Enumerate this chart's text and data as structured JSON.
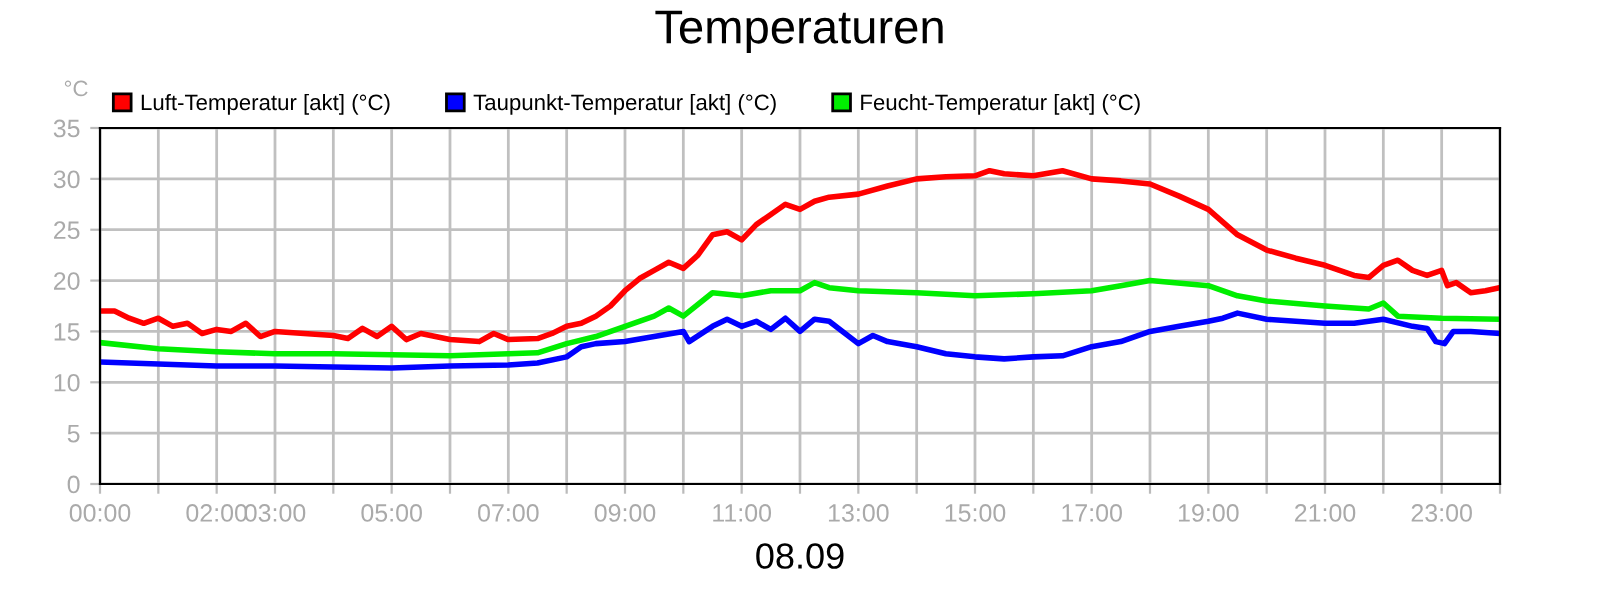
{
  "chart_data": {
    "type": "line",
    "title": "Temperaturen",
    "xlabel": "08.09",
    "ylabel": "°C",
    "legend": "top left",
    "grid": true,
    "marker": "none",
    "line_style": "solid",
    "xlim": [
      0,
      24
    ],
    "ylim": [
      0,
      35
    ],
    "yticks": [
      0,
      5,
      10,
      15,
      20,
      25,
      30,
      35
    ],
    "xticks": [
      {
        "value": 0,
        "label": "00:00"
      },
      {
        "value": 1,
        "label": null
      },
      {
        "value": 2,
        "label": "02:00"
      },
      {
        "value": 3,
        "label": "03:00"
      },
      {
        "value": 4,
        "label": null
      },
      {
        "value": 5,
        "label": "05:00"
      },
      {
        "value": 6,
        "label": null
      },
      {
        "value": 7,
        "label": "07:00"
      },
      {
        "value": 8,
        "label": null
      },
      {
        "value": 9,
        "label": "09:00"
      },
      {
        "value": 10,
        "label": null
      },
      {
        "value": 11,
        "label": "11:00"
      },
      {
        "value": 12,
        "label": null
      },
      {
        "value": 13,
        "label": "13:00"
      },
      {
        "value": 14,
        "label": null
      },
      {
        "value": 15,
        "label": "15:00"
      },
      {
        "value": 16,
        "label": null
      },
      {
        "value": 17,
        "label": "17:00"
      },
      {
        "value": 18,
        "label": null
      },
      {
        "value": 19,
        "label": "19:00"
      },
      {
        "value": 20,
        "label": null
      },
      {
        "value": 21,
        "label": "21:00"
      },
      {
        "value": 22,
        "label": null
      },
      {
        "value": 23,
        "label": "23:00"
      },
      {
        "value": 24,
        "label": null
      }
    ],
    "series": [
      {
        "name": "Luft-Temperatur [akt] (°C)",
        "color": "#ff0000",
        "x": [
          0,
          0.25,
          0.5,
          0.75,
          1,
          1.25,
          1.5,
          1.75,
          2,
          2.25,
          2.5,
          2.75,
          3,
          3.5,
          4,
          4.25,
          4.5,
          4.75,
          5,
          5.25,
          5.5,
          6,
          6.5,
          6.75,
          7,
          7.5,
          7.75,
          8,
          8.25,
          8.5,
          8.75,
          9,
          9.25,
          9.5,
          9.75,
          10,
          10.25,
          10.5,
          10.75,
          11,
          11.25,
          11.5,
          11.75,
          12,
          12.25,
          12.5,
          13,
          13.5,
          14,
          14.5,
          15,
          15.25,
          15.5,
          16,
          16.5,
          17,
          17.5,
          18,
          18.5,
          19,
          19.5,
          20,
          20.5,
          21,
          21.5,
          21.75,
          22,
          22.25,
          22.5,
          22.75,
          23,
          23.1,
          23.25,
          23.5,
          23.75,
          24
        ],
        "values": [
          17,
          17,
          16.3,
          15.8,
          16.3,
          15.5,
          15.8,
          14.8,
          15.2,
          15,
          15.8,
          14.5,
          15,
          14.8,
          14.6,
          14.3,
          15.3,
          14.5,
          15.5,
          14.2,
          14.8,
          14.2,
          14,
          14.8,
          14.2,
          14.3,
          14.8,
          15.5,
          15.8,
          16.5,
          17.5,
          19,
          20.2,
          21,
          21.8,
          21.2,
          22.5,
          24.5,
          24.8,
          24,
          25.5,
          26.5,
          27.5,
          27,
          27.8,
          28.2,
          28.5,
          29.3,
          30,
          30.2,
          30.3,
          30.8,
          30.5,
          30.3,
          30.8,
          30,
          29.8,
          29.5,
          28.3,
          27,
          24.5,
          23,
          22.2,
          21.5,
          20.5,
          20.3,
          21.5,
          22,
          21,
          20.5,
          21,
          19.5,
          19.8,
          18.8,
          19,
          19.3
        ]
      },
      {
        "name": "Taupunkt-Temperatur [akt] (°C)",
        "color": "#0000ff",
        "x": [
          0,
          1,
          2,
          3,
          4,
          5,
          6,
          7,
          7.5,
          8,
          8.25,
          8.5,
          9,
          9.5,
          10,
          10.1,
          10.5,
          10.75,
          11,
          11.25,
          11.5,
          11.75,
          12,
          12.25,
          12.5,
          13,
          13.25,
          13.5,
          14,
          14.5,
          15,
          15.5,
          16,
          16.5,
          17,
          17.5,
          18,
          18.5,
          19,
          19.25,
          19.5,
          20,
          21,
          21.5,
          22,
          22.5,
          22.75,
          22.9,
          23.05,
          23.2,
          23.5,
          24
        ],
        "values": [
          12,
          11.8,
          11.6,
          11.6,
          11.5,
          11.4,
          11.6,
          11.7,
          11.9,
          12.5,
          13.5,
          13.8,
          14,
          14.5,
          15,
          14,
          15.5,
          16.2,
          15.5,
          16,
          15.2,
          16.3,
          15,
          16.2,
          16,
          13.8,
          14.6,
          14,
          13.5,
          12.8,
          12.5,
          12.3,
          12.5,
          12.6,
          13.5,
          14,
          15,
          15.5,
          16,
          16.3,
          16.8,
          16.2,
          15.8,
          15.8,
          16.2,
          15.5,
          15.3,
          14,
          13.8,
          15,
          15,
          14.8
        ]
      },
      {
        "name": "Feucht-Temperatur [akt] (°C)",
        "color": "#00ee00",
        "x": [
          0,
          1,
          2,
          3,
          4,
          5,
          6,
          7,
          7.5,
          8,
          8.5,
          9,
          9.5,
          9.75,
          10,
          10.5,
          11,
          11.5,
          12,
          12.25,
          12.5,
          13,
          14,
          15,
          16,
          17,
          17.5,
          18,
          19,
          19.5,
          20,
          21,
          21.75,
          22,
          22.25,
          23,
          24
        ],
        "values": [
          13.9,
          13.3,
          13,
          12.8,
          12.8,
          12.7,
          12.6,
          12.8,
          12.9,
          13.8,
          14.5,
          15.5,
          16.5,
          17.3,
          16.5,
          18.8,
          18.5,
          19,
          19,
          19.8,
          19.3,
          19,
          18.8,
          18.5,
          18.7,
          19,
          19.5,
          20,
          19.5,
          18.5,
          18,
          17.5,
          17.2,
          17.8,
          16.5,
          16.3,
          16.2
        ]
      }
    ]
  }
}
